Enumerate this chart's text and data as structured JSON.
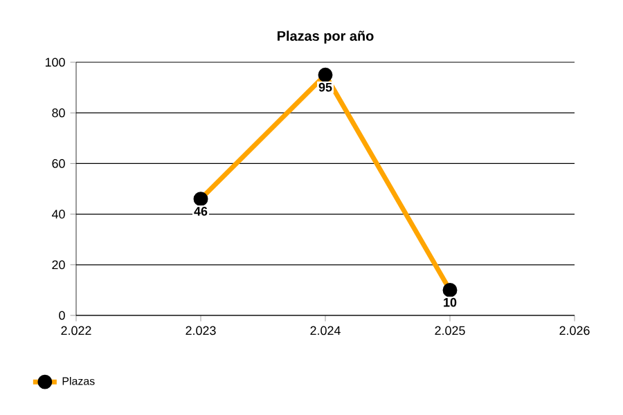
{
  "chart_data": {
    "type": "line",
    "title": "Plazas por año",
    "x": [
      2023,
      2024,
      2025
    ],
    "series": [
      {
        "name": "Plazas",
        "color": "#ffa500",
        "values": [
          46,
          95,
          10
        ]
      }
    ],
    "xlim": [
      2022,
      2026
    ],
    "xticks": [
      {
        "value": 2022,
        "label": "2.022"
      },
      {
        "value": 2023,
        "label": "2.023"
      },
      {
        "value": 2024,
        "label": "2.024"
      },
      {
        "value": 2025,
        "label": "2.025"
      },
      {
        "value": 2026,
        "label": "2.026"
      }
    ],
    "ylim": [
      0,
      100
    ],
    "yticks": [
      0,
      20,
      40,
      60,
      80,
      100
    ],
    "grid": "y",
    "legend": "bottom left",
    "marker": "circle",
    "line_style": "solid",
    "data_labels": true
  }
}
